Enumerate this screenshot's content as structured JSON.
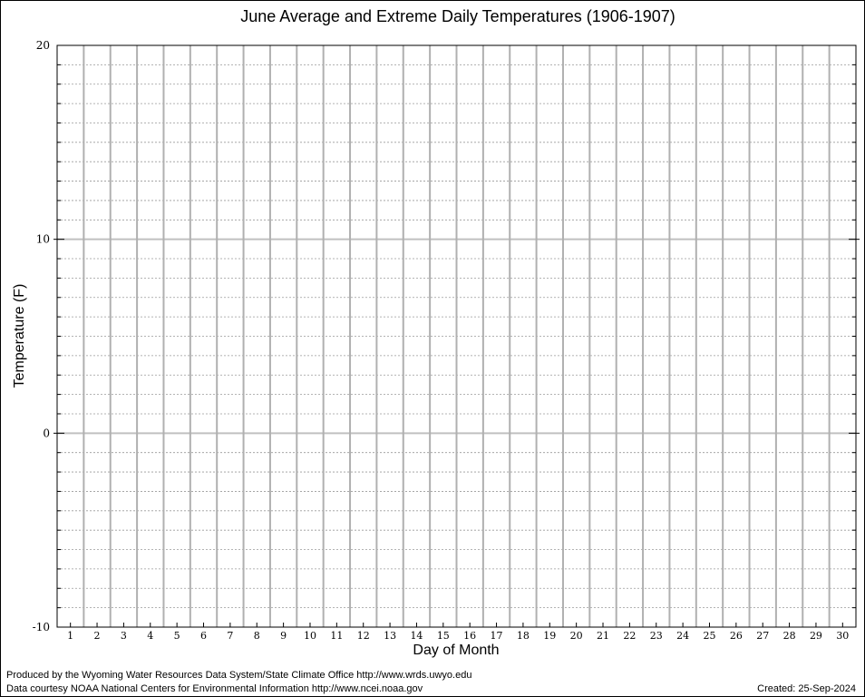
{
  "chart_data": {
    "type": "line",
    "title": "June Average and Extreme Daily Temperatures (1906-1907)",
    "xlabel": "Day of Month",
    "ylabel": "Temperature (F)",
    "x": [
      1,
      2,
      3,
      4,
      5,
      6,
      7,
      8,
      9,
      10,
      11,
      12,
      13,
      14,
      15,
      16,
      17,
      18,
      19,
      20,
      21,
      22,
      23,
      24,
      25,
      26,
      27,
      28,
      29,
      30
    ],
    "xlim": [
      0.5,
      30.5
    ],
    "ylim": [
      -10,
      20
    ],
    "yticks": [
      -10,
      0,
      10,
      20
    ],
    "y_minor_step": 1,
    "grid": true,
    "series": []
  },
  "footer": {
    "produced_by": "Produced by the Wyoming Water Resources Data System/State Climate Office http://www.wrds.uwyo.edu",
    "data_courtesy": "Data courtesy NOAA National Centers for Environmental Information http://www.ncei.noaa.gov",
    "created": "Created: 25-Sep-2024"
  }
}
